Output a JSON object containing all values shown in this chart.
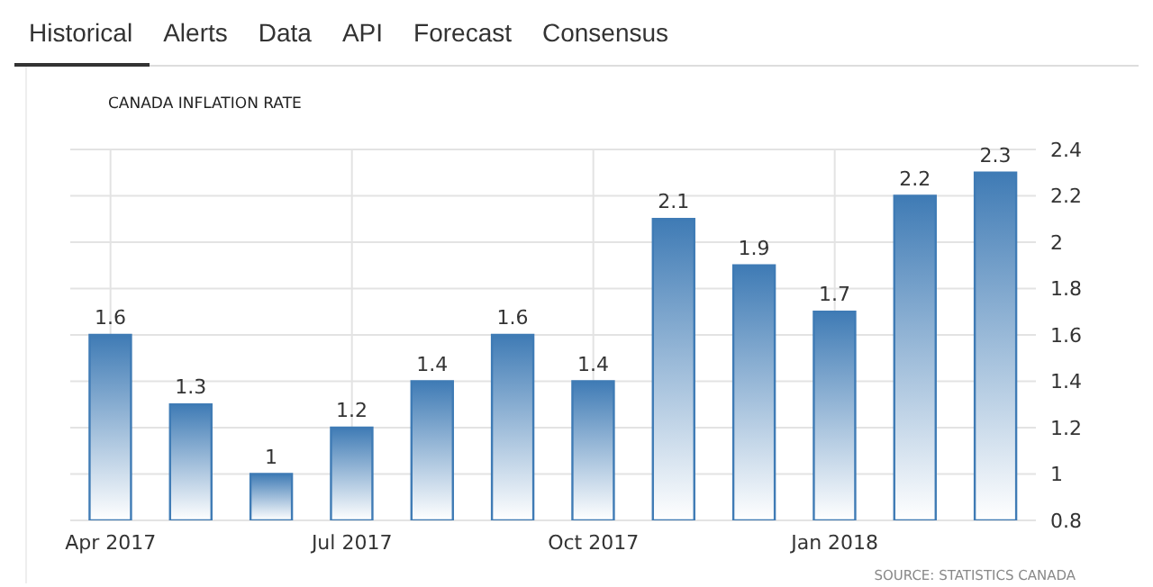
{
  "chart_data": {
    "type": "bar",
    "title": "CANADA INFLATION RATE",
    "categories": [
      "Apr 2017",
      null,
      null,
      "Jul 2017",
      null,
      null,
      "Oct 2017",
      null,
      null,
      "Jan 2018",
      null,
      null
    ],
    "values": [
      1.6,
      1.3,
      1,
      1.2,
      1.4,
      1.6,
      1.4,
      2.1,
      1.9,
      1.7,
      2.2,
      2.3
    ],
    "color": "#3f7bb5",
    "ylim": [
      0.8,
      2.4
    ],
    "yticks": [
      0.8,
      1,
      1.2,
      1.4,
      1.6,
      1.8,
      2,
      2.2,
      2.4
    ],
    "grid": true,
    "data_labels": true,
    "annotations": [
      "Historical",
      "Alerts",
      "Data",
      "API",
      "Forecast",
      "Consensus",
      "SOURCE: STATISTICS CANADA"
    ]
  }
}
